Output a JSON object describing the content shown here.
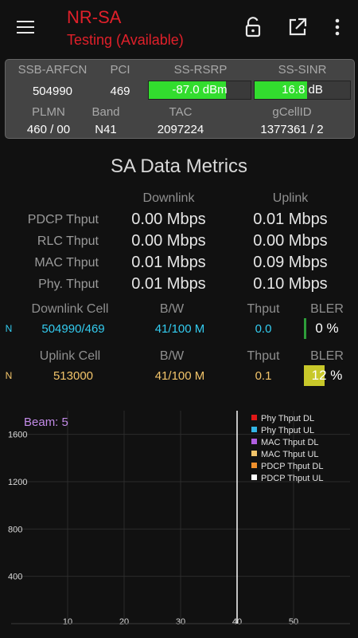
{
  "appbar": {
    "title": "NR-SA",
    "subtitle": "Testing (Available)"
  },
  "info": {
    "row1_headers": [
      "SSB-ARFCN",
      "PCI",
      "SS-RSRP",
      "SS-SINR"
    ],
    "ssb_arfcn": "504990",
    "pci": "469",
    "rsrp": {
      "text": "-87.0 dBm",
      "level": 0.76
    },
    "sinr": {
      "text": "16.8 dB",
      "level": 0.55
    },
    "row2_headers": [
      "PLMN",
      "Band",
      "TAC",
      "gCellID"
    ],
    "plmn": "460 / 00",
    "band": "N41",
    "tac": "2097224",
    "gcellid": "1377361 / 2"
  },
  "metrics": {
    "title": "SA Data Metrics",
    "downlink_header": "Downlink",
    "uplink_header": "Uplink",
    "rows": [
      {
        "label": "PDCP Thput",
        "dl": "0.00 Mbps",
        "ul": "0.01 Mbps"
      },
      {
        "label": "RLC Thput",
        "dl": "0.00 Mbps",
        "ul": "0.00 Mbps"
      },
      {
        "label": "MAC Thput",
        "dl": "0.01 Mbps",
        "ul": "0.09 Mbps"
      },
      {
        "label": "Phy. Thput",
        "dl": "0.01 Mbps",
        "ul": "0.10 Mbps"
      }
    ]
  },
  "cells": {
    "downlink": {
      "headers": [
        "Downlink Cell",
        "B/W",
        "Thput",
        "BLER"
      ],
      "tag": "N",
      "cell": "504990/469",
      "bw": "41/100 M",
      "thput": "0.0",
      "bler": "0 %",
      "bler_level": 0.0
    },
    "uplink": {
      "headers": [
        "Uplink Cell",
        "B/W",
        "Thput",
        "BLER"
      ],
      "tag": "N",
      "cell": "513000",
      "bw": "41/100 M",
      "thput": "0.1",
      "bler": "12 %",
      "bler_level": 0.44
    }
  },
  "colors": {
    "dl": "#33ccf0",
    "ul": "#f2c46a",
    "rsrp_fill": "#32dd2e",
    "dl_bler_fill": "#2e9e3a",
    "ul_bler_fill": "#c8c82a"
  },
  "chart_data": {
    "type": "line",
    "annotation": "Beam: 5",
    "x_ticks": [
      10,
      20,
      30,
      40,
      50
    ],
    "y_ticks": [
      400,
      800,
      1200,
      1600
    ],
    "xlim": [
      0,
      60
    ],
    "ylim": [
      0,
      1800
    ],
    "cursor_x": 40,
    "grid": true,
    "legend_position": "top-right",
    "series": [
      {
        "name": "Phy Thput DL",
        "color": "#e01818",
        "values": []
      },
      {
        "name": "Phy Thput UL",
        "color": "#33b5e5",
        "values": []
      },
      {
        "name": "MAC Thput DL",
        "color": "#b05ee0",
        "values": []
      },
      {
        "name": "MAC Thput UL",
        "color": "#f2c46a",
        "values": []
      },
      {
        "name": "PDCP Thput DL",
        "color": "#f0902c",
        "values": []
      },
      {
        "name": "PDCP Thput UL",
        "color": "#ffffff",
        "values": []
      }
    ]
  }
}
